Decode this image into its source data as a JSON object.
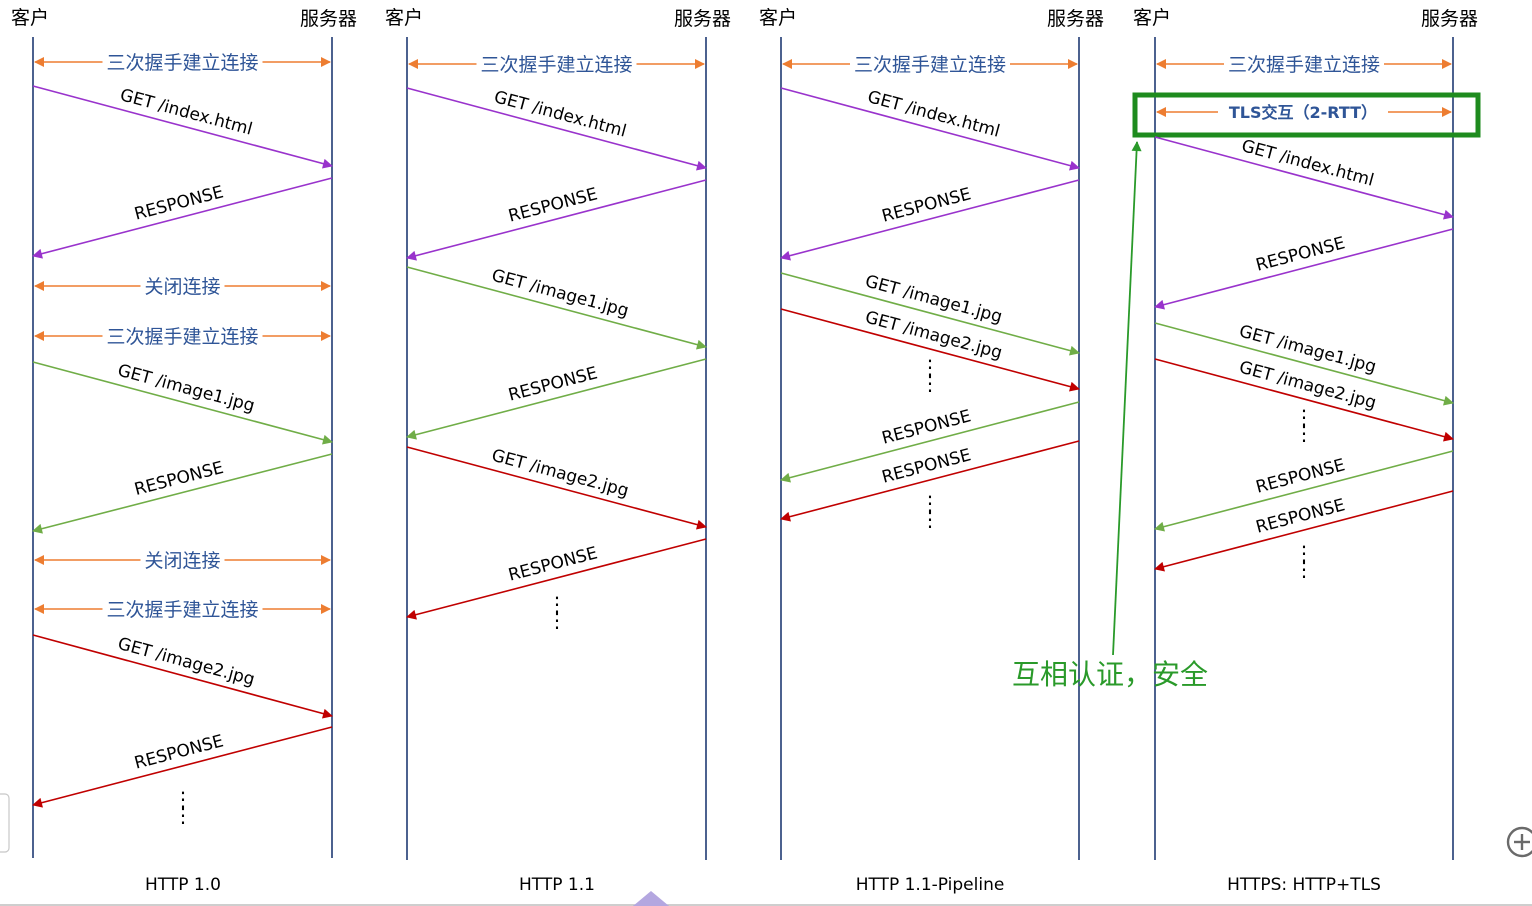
{
  "colors": {
    "lifeline": "#1F3A73",
    "handshake": "#ED7D31",
    "index": "#9933CC",
    "image1": "#70AD47",
    "image2": "#C00000",
    "label_blue": "#2F5597",
    "note_green": "#2A9A2A",
    "tls_box": "#1E8B1E"
  },
  "labels": {
    "client": "客户",
    "server": "服务器",
    "handshake": "三次握手建立连接",
    "close": "关闭连接",
    "get_index": "GET /index.html",
    "get_image1": "GET /image1.jpg",
    "get_image2": "GET /image2.jpg",
    "response": "RESPONSE",
    "tls": "TLS交互（2-RTT）",
    "ellipsis": "⋮",
    "note": "互相认证，安全"
  },
  "captions": [
    "HTTP 1.0",
    "HTTP 1.1",
    "HTTP 1.1-Pipeline",
    "HTTPS: HTTP+TLS"
  ],
  "icons": {
    "bottom_right": "plus-circle-icon",
    "bottom_center": "triangle-icon"
  }
}
